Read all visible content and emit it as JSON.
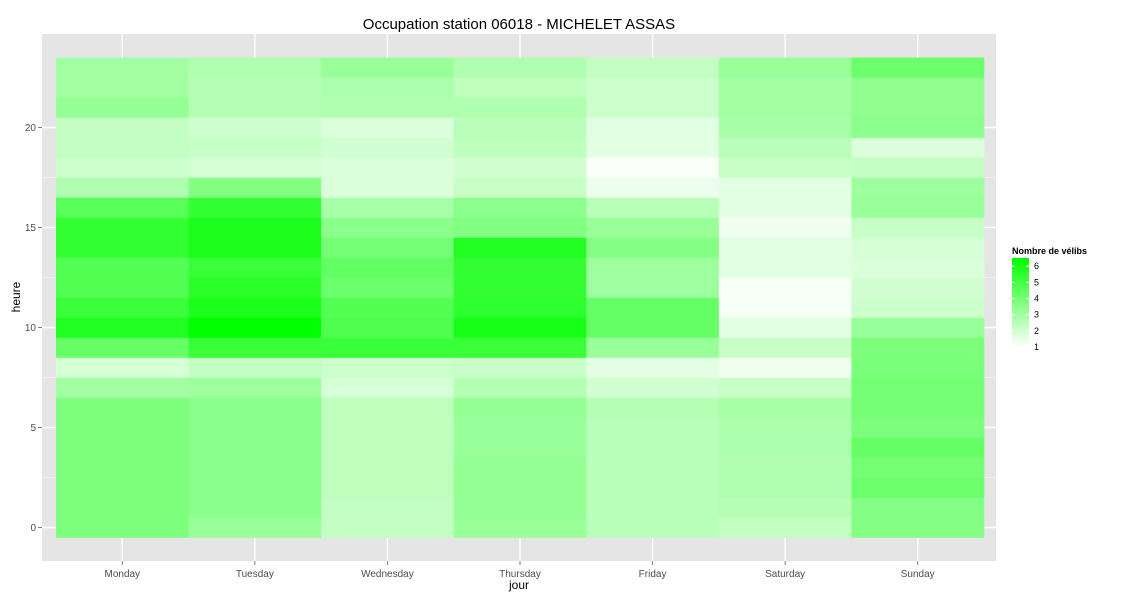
{
  "chart_data": {
    "type": "heatmap",
    "title": "Occupation station 06018 - MICHELET ASSAS",
    "xlabel": "jour",
    "ylabel": "heure",
    "x_categories": [
      "Monday",
      "Tuesday",
      "Wednesday",
      "Thursday",
      "Friday",
      "Saturday",
      "Sunday"
    ],
    "y_hours": [
      0,
      1,
      2,
      3,
      4,
      5,
      6,
      7,
      8,
      9,
      10,
      11,
      12,
      13,
      14,
      15,
      16,
      17,
      18,
      19,
      20,
      21,
      22,
      23
    ],
    "y_ticks": [
      0,
      5,
      10,
      15,
      20
    ],
    "ylim": [
      -0.5,
      23.5
    ],
    "value_range": [
      1,
      6.5
    ],
    "grid": true,
    "legend": {
      "title": "Nombre de vélibs",
      "labels": [
        6,
        5,
        4,
        3,
        2,
        1
      ],
      "placement": "right"
    },
    "colors": {
      "low": "#ffffff",
      "high": "#00ff00",
      "panel": "#e5e5e5",
      "grid": "#ffffff"
    },
    "values": [
      [
        3.8,
        3.2,
        2.3,
        3.2,
        2.5,
        2.3,
        3.6
      ],
      [
        3.8,
        3.5,
        2.3,
        3.3,
        2.5,
        2.6,
        3.6
      ],
      [
        3.8,
        3.5,
        2.4,
        3.3,
        2.5,
        2.7,
        4.2
      ],
      [
        3.8,
        3.5,
        2.4,
        3.3,
        2.5,
        2.7,
        4.0
      ],
      [
        3.8,
        3.5,
        2.4,
        3.2,
        2.5,
        2.8,
        4.3
      ],
      [
        3.8,
        3.5,
        2.4,
        3.2,
        2.5,
        2.8,
        3.8
      ],
      [
        3.8,
        3.5,
        2.4,
        3.3,
        2.6,
        2.9,
        4.0
      ],
      [
        3.0,
        3.1,
        1.9,
        2.6,
        2.0,
        2.2,
        4.0
      ],
      [
        1.9,
        2.3,
        2.1,
        2.2,
        1.6,
        1.3,
        3.9
      ],
      [
        4.3,
        5.3,
        5.3,
        5.3,
        3.2,
        2.2,
        3.8
      ],
      [
        5.8,
        6.5,
        4.8,
        6.0,
        4.3,
        1.6,
        3.2
      ],
      [
        5.2,
        5.9,
        4.7,
        5.5,
        4.3,
        1.2,
        2.1
      ],
      [
        4.7,
        5.6,
        4.2,
        5.4,
        3.1,
        1.2,
        2.0
      ],
      [
        4.7,
        5.3,
        4.4,
        5.4,
        3.1,
        1.6,
        1.8
      ],
      [
        5.4,
        5.9,
        4.0,
        5.8,
        3.6,
        1.6,
        1.9
      ],
      [
        5.4,
        5.9,
        3.5,
        3.7,
        3.2,
        1.3,
        2.2
      ],
      [
        4.6,
        5.4,
        2.9,
        3.5,
        2.5,
        1.6,
        3.2
      ],
      [
        2.7,
        3.7,
        1.8,
        2.2,
        1.4,
        1.6,
        3.1
      ],
      [
        2.1,
        1.9,
        1.8,
        2.0,
        1.1,
        2.2,
        2.3
      ],
      [
        2.3,
        2.2,
        2.0,
        2.4,
        1.6,
        2.5,
        1.8
      ],
      [
        2.3,
        2.1,
        1.8,
        2.5,
        1.6,
        2.9,
        3.5
      ],
      [
        3.3,
        2.6,
        2.7,
        2.7,
        2.1,
        3.0,
        3.4
      ],
      [
        3.0,
        2.6,
        2.8,
        2.4,
        2.1,
        3.0,
        3.4
      ],
      [
        3.0,
        2.7,
        3.2,
        2.7,
        2.3,
        3.2,
        4.2
      ]
    ]
  }
}
